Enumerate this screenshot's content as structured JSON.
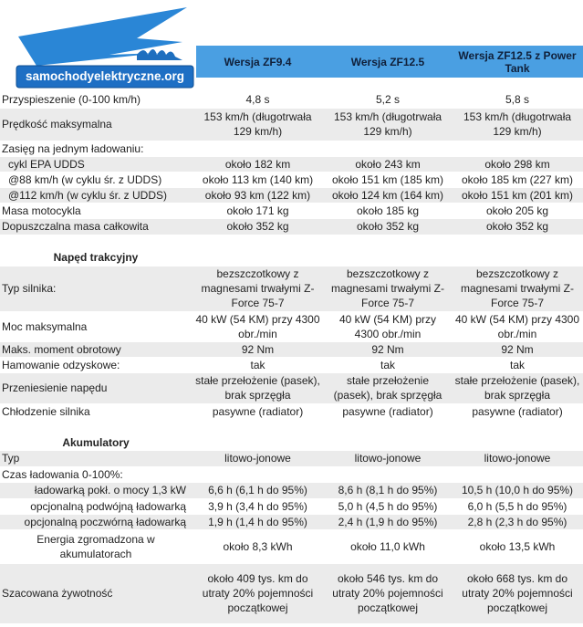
{
  "header": {
    "logo": "samochodyelektryczne.org",
    "columns": [
      "Wersja ZF9.4",
      "Wersja ZF12.5",
      "Wersja ZF12.5 z Power Tank"
    ]
  },
  "table": {
    "rows": [
      {
        "label": "Przyspieszenie (0-100 km/h)",
        "values": [
          "4,8 s",
          "5,2 s",
          "5,8 s"
        ]
      },
      {
        "label": "Prędkość maksymalna",
        "values": [
          "153 km/h (długotrwała 129 km/h)",
          "153 km/h (długotrwała 129 km/h)",
          "153 km/h (długotrwała 129 km/h)"
        ]
      },
      {
        "label": "Zasięg na jednym ładowaniu:"
      },
      {
        "label": "cykl EPA UDDS",
        "values": [
          "około 182 km",
          "około 243 km",
          "około 298 km"
        ]
      },
      {
        "label": "@88 km/h (w cyklu śr. z UDDS)",
        "values": [
          "około 113 km (140 km)",
          "około 151 km (185 km)",
          "około 185 km (227 km)"
        ]
      },
      {
        "label": "@112 km/h (w cyklu śr. z UDDS)",
        "values": [
          "około 93 km (122 km)",
          "około 124 km (164 km)",
          "około 151 km (201 km)"
        ]
      },
      {
        "label": "Masa motocykla",
        "values": [
          "około 171 kg",
          "około 185 kg",
          "około 205 kg"
        ]
      },
      {
        "label": "Dopuszczalna masa całkowita",
        "values": [
          "około 352 kg",
          "około 352 kg",
          "około 352 kg"
        ]
      },
      {
        "section": "Napęd trakcyjny"
      },
      {
        "label": "Typ silnika:",
        "values": [
          "bezszczotkowy z magnesami trwałymi Z-Force 75-7",
          "bezszczotkowy z magnesami trwałymi Z-Force 75-7",
          "bezszczotkowy z magnesami trwałymi Z-Force 75-7"
        ]
      },
      {
        "label": "Moc maksymalna",
        "values": [
          "40 kW (54 KM) przy 4300 obr./min",
          "40 kW (54 KM) przy 4300 obr./min",
          "40 kW (54 KM) przy 4300 obr./min"
        ]
      },
      {
        "label": "Maks. moment obrotowy",
        "values": [
          "92 Nm",
          "92 Nm",
          "92 Nm"
        ]
      },
      {
        "label": "Hamowanie odzyskowe:",
        "values": [
          "tak",
          "tak",
          "tak"
        ]
      },
      {
        "label": "Przeniesienie napędu",
        "values": [
          "stałe przełożenie (pasek), brak sprzęgła",
          "stałe przełożenie (pasek), brak sprzęgła",
          "stałe przełożenie (pasek), brak sprzęgła"
        ]
      },
      {
        "label": "Chłodzenie silnika",
        "values": [
          "pasywne (radiator)",
          "pasywne (radiator)",
          "pasywne (radiator)"
        ]
      },
      {
        "section": "Akumulatory"
      },
      {
        "label": "Typ",
        "values": [
          "litowo-jonowe",
          "litowo-jonowe",
          "litowo-jonowe"
        ]
      },
      {
        "label": "Czas ładowania 0-100%:"
      },
      {
        "label": "ładowarką pokł. o mocy 1,3 kW",
        "values": [
          "6,6 h (6,1 h do 95%)",
          "8,6 h (8,1 h do 95%)",
          "10,5 h (10,0 h do 95%)"
        ]
      },
      {
        "label": "opcjonalną podwójną ładowarką",
        "values": [
          "3,9 h (3,4 h do 95%)",
          "5,0 h (4,5 h do 95%)",
          "6,0 h (5,5 h do 95%)"
        ]
      },
      {
        "label": "opcjonalną poczwórną ładowarką",
        "values": [
          "1,9 h (1,4 h do 95%)",
          "2,4 h (1,9 h do 95%)",
          "2,8 h (2,3 h do 95%)"
        ]
      },
      {
        "label": "Energia zgromadzona w akumulatorach",
        "values": [
          "około 8,3 kWh",
          "około 11,0 kWh",
          "około 13,5 kWh"
        ]
      },
      {
        "label": "Szacowana żywotność",
        "values": [
          "około 409 tys. km do utraty 20% pojemności początkowej",
          "około 546 tys. km do utraty 20% pojemności początkowej",
          "około 668 tys. km do utraty 20% pojemności początkowej"
        ]
      }
    ]
  }
}
